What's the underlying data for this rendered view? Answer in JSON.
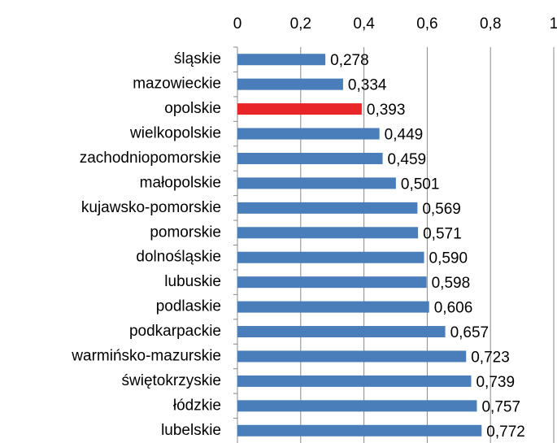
{
  "chart_data": {
    "type": "hbar",
    "categories": [
      "śląskie",
      "mazowieckie",
      "opolskie",
      "wielkopolskie",
      "zachodniopomorskie",
      "małopolskie",
      "kujawsko-pomorskie",
      "pomorskie",
      "dolnośląskie",
      "lubuskie",
      "podlaskie",
      "podkarpackie",
      "warmińsko-mazurskie",
      "świętokrzyskie",
      "łódzkie",
      "lubelskie"
    ],
    "values": [
      0.278,
      0.334,
      0.393,
      0.449,
      0.459,
      0.501,
      0.569,
      0.571,
      0.59,
      0.598,
      0.606,
      0.657,
      0.723,
      0.739,
      0.757,
      0.772
    ],
    "value_labels": [
      "0,278",
      "0,334",
      "0,393",
      "0,449",
      "0,459",
      "0,501",
      "0,569",
      "0,571",
      "0,590",
      "0,598",
      "0,606",
      "0,657",
      "0,723",
      "0,739",
      "0,757",
      "0,772"
    ],
    "colors": [
      "#4a7ebb",
      "#4a7ebb",
      "#e8262a",
      "#4a7ebb",
      "#4a7ebb",
      "#4a7ebb",
      "#4a7ebb",
      "#4a7ebb",
      "#4a7ebb",
      "#4a7ebb",
      "#4a7ebb",
      "#4a7ebb",
      "#4a7ebb",
      "#4a7ebb",
      "#4a7ebb",
      "#4a7ebb"
    ],
    "xlim": [
      0,
      1
    ],
    "xticks": [
      0,
      {
        "value": 0.2,
        "label": "0,2"
      },
      {
        "value": 0.4,
        "label": "0,4"
      },
      {
        "value": 0.6,
        "label": "0,6"
      },
      {
        "value": 0.8,
        "label": "0,8"
      },
      1
    ],
    "grid": true
  }
}
